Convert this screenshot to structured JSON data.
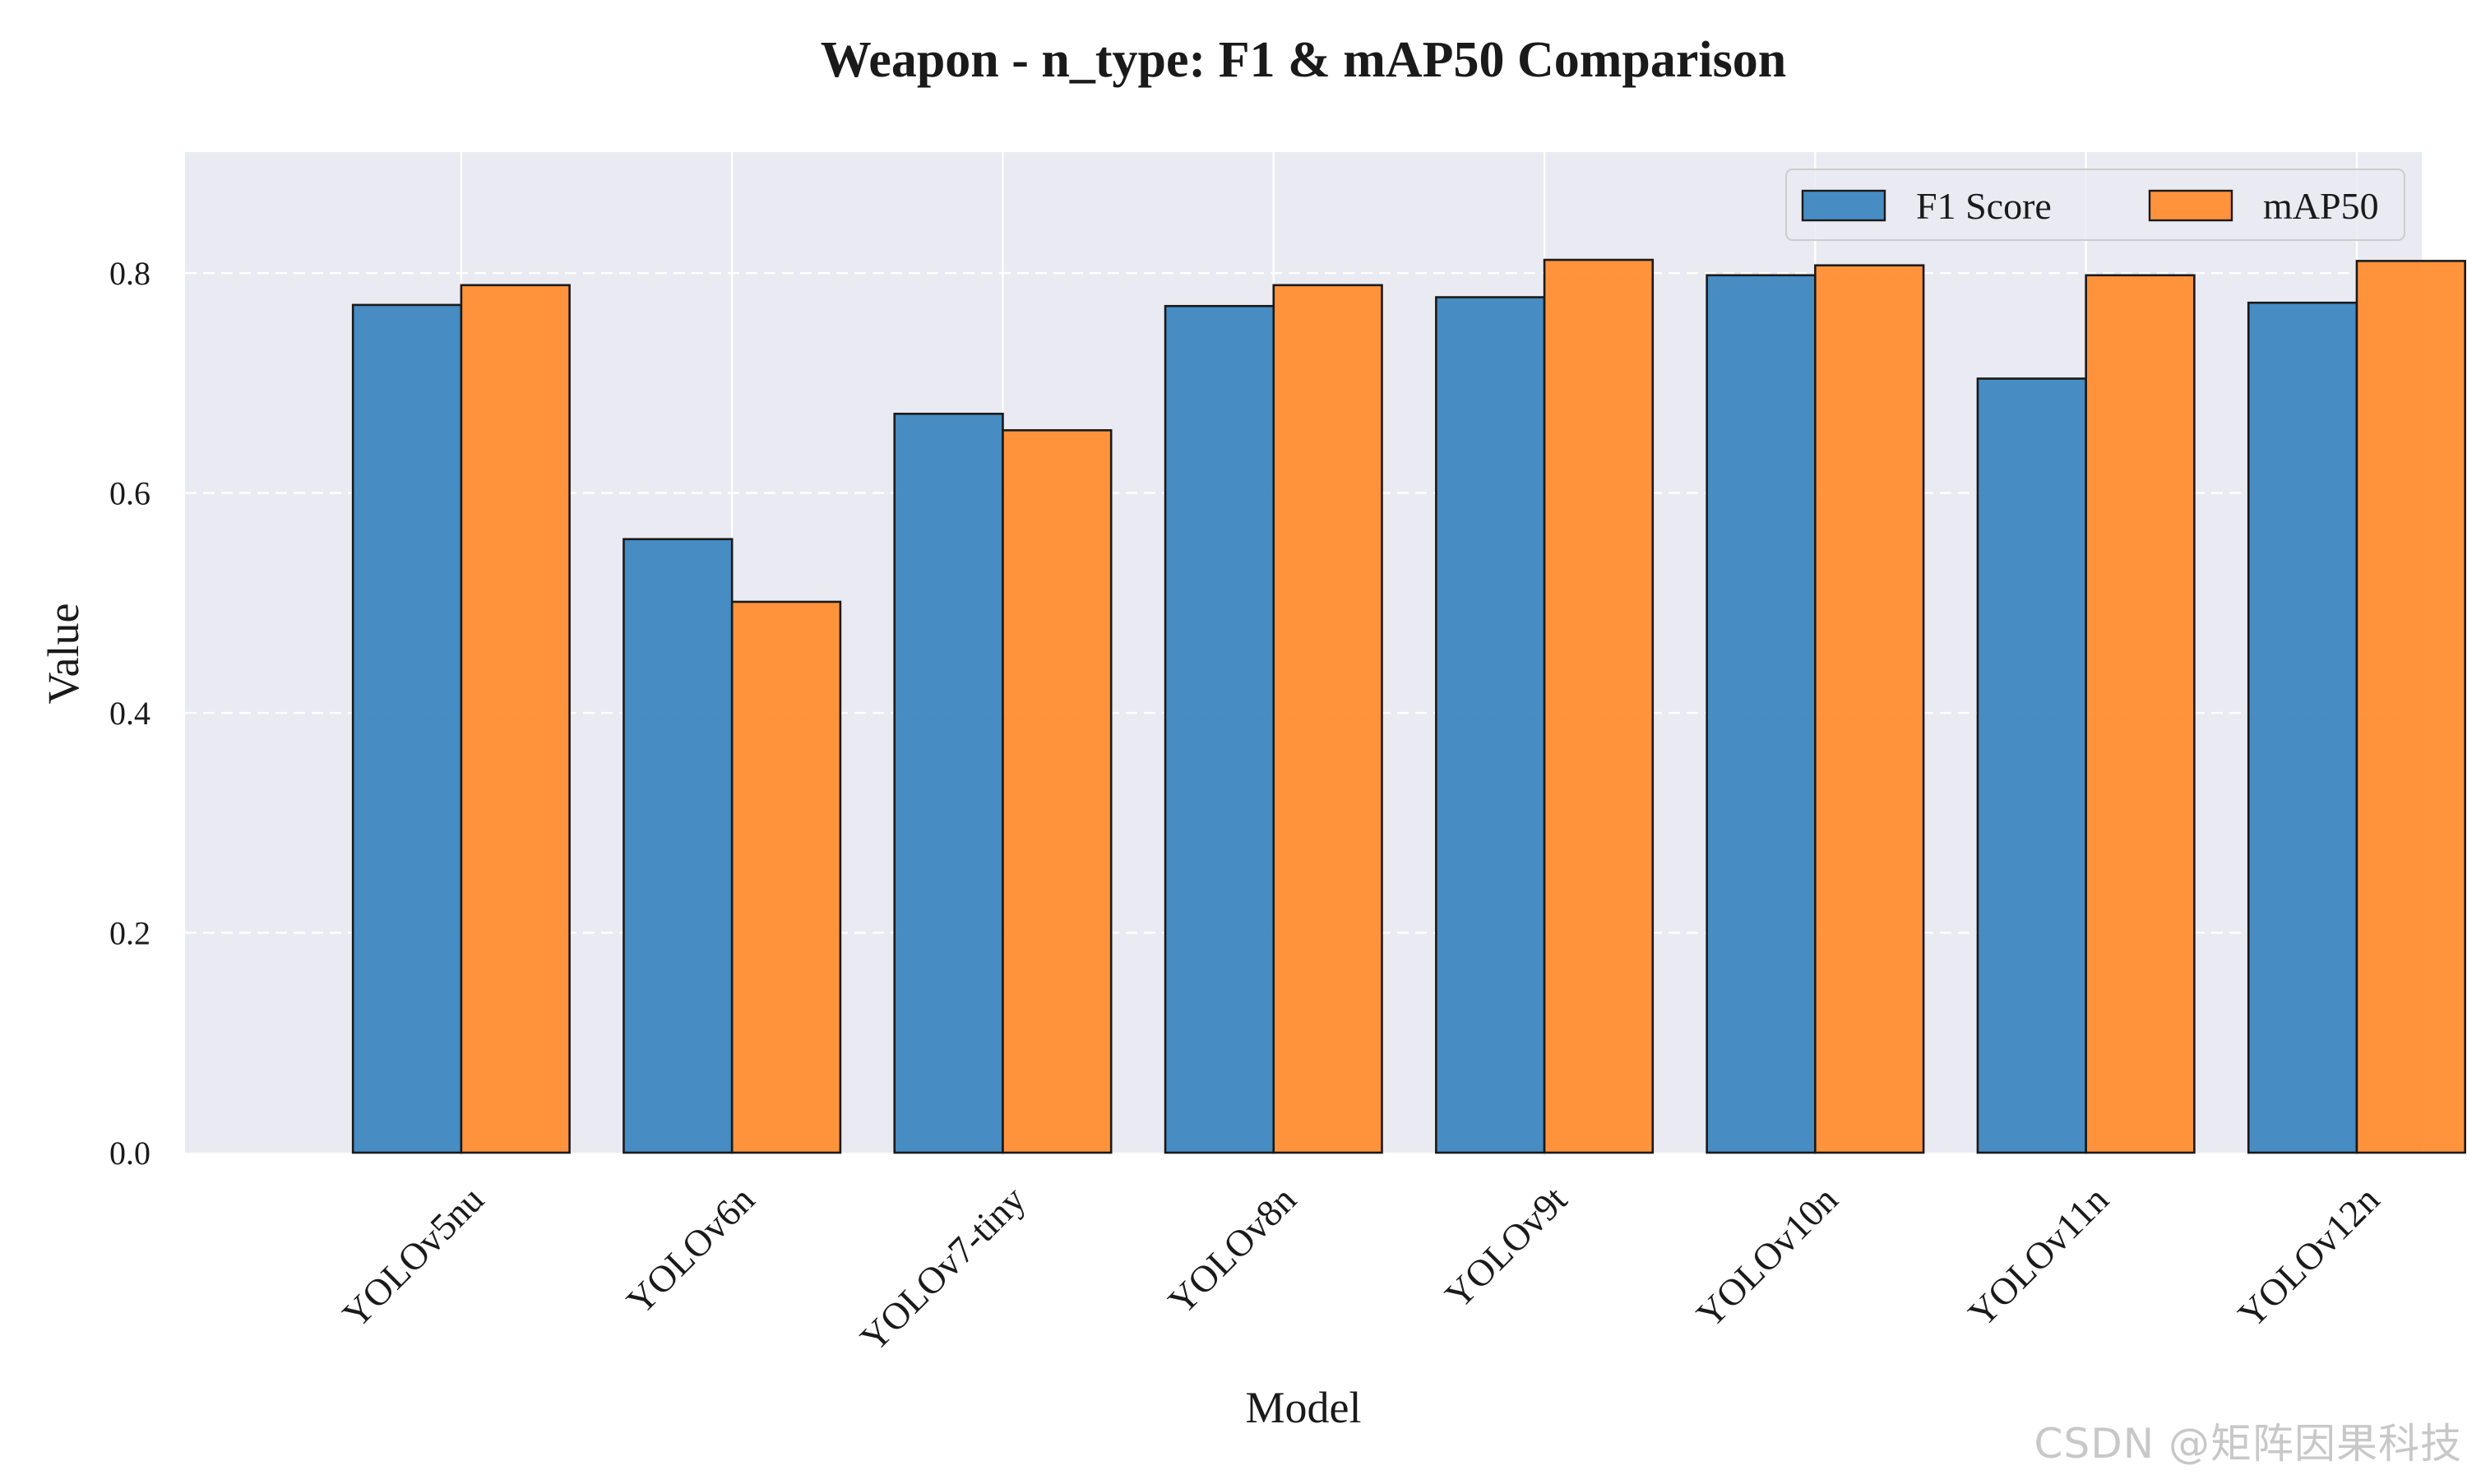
{
  "chart_data": {
    "type": "bar",
    "title": "Weapon - n_type: F1 & mAP50 Comparison",
    "xlabel": "Model",
    "ylabel": "Value",
    "categories": [
      "YOLOv5nu",
      "YOLOv6n",
      "YOLOv7-tiny",
      "YOLOv8n",
      "YOLOv9t",
      "YOLOv10n",
      "YOLOv11n",
      "YOLOv12n"
    ],
    "series": [
      {
        "name": "F1 Score",
        "color": "#3a84c0",
        "values": [
          0.771,
          0.558,
          0.672,
          0.77,
          0.778,
          0.798,
          0.704,
          0.773
        ]
      },
      {
        "name": "mAP50",
        "color": "#ff8c2e",
        "values": [
          0.789,
          0.501,
          0.657,
          0.789,
          0.812,
          0.807,
          0.798,
          0.811
        ]
      }
    ],
    "ylim": [
      0,
      0.91
    ],
    "yticks": [
      "0.0",
      "0.2",
      "0.4",
      "0.6",
      "0.8"
    ],
    "ytick_values": [
      0,
      0.2,
      0.4,
      0.6,
      0.8
    ],
    "grid": true,
    "legend_position": "top-right",
    "background": "#eaeaf2"
  },
  "watermark": "CSDN @矩阵因果科技"
}
